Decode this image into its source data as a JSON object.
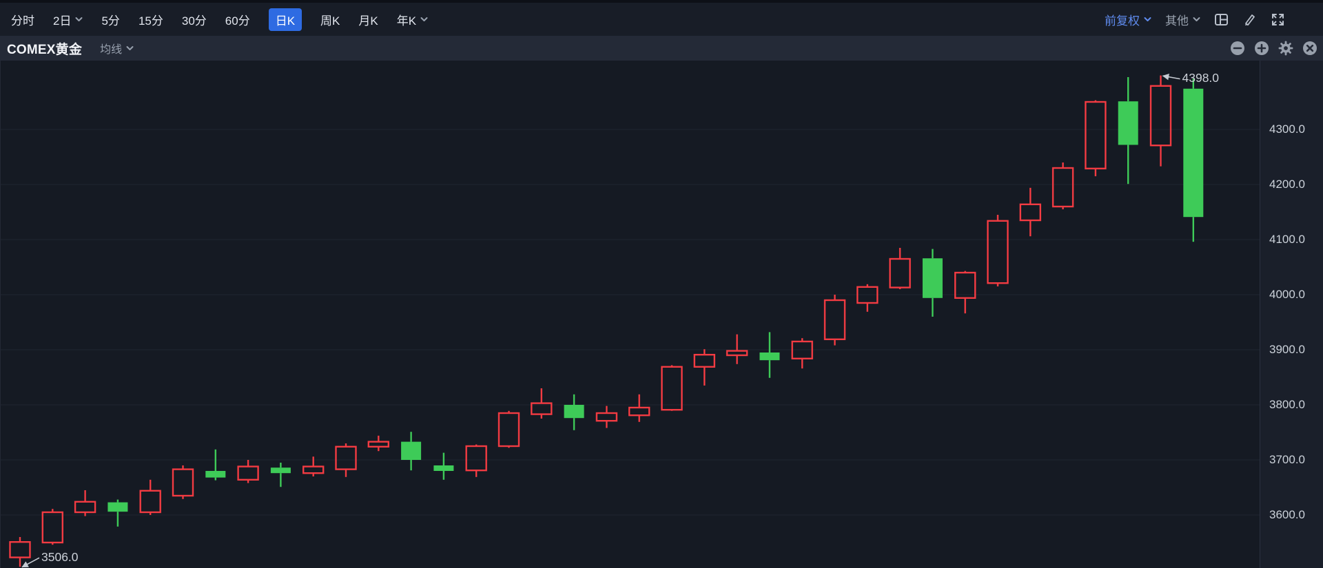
{
  "topbar": {
    "tabs": [
      {
        "label": "分时",
        "dropdown": false,
        "active": false
      },
      {
        "label": "2日",
        "dropdown": true,
        "active": false
      },
      {
        "label": "5分",
        "dropdown": false,
        "active": false
      },
      {
        "label": "15分",
        "dropdown": false,
        "active": false
      },
      {
        "label": "30分",
        "dropdown": false,
        "active": false
      },
      {
        "label": "60分",
        "dropdown": false,
        "active": false
      },
      {
        "label": "日K",
        "dropdown": false,
        "active": true
      },
      {
        "label": "周K",
        "dropdown": false,
        "active": false
      },
      {
        "label": "月K",
        "dropdown": false,
        "active": false
      },
      {
        "label": "年K",
        "dropdown": true,
        "active": false
      }
    ],
    "adjust_label": "前复权",
    "other_label": "其他",
    "icons": [
      "layout-grid-icon",
      "brush-icon",
      "expand-icon"
    ]
  },
  "subheader": {
    "title": "COMEX黄金",
    "ma_label": "均线",
    "icons": [
      "zoom-out-icon",
      "zoom-in-icon",
      "settings-gear-icon",
      "close-icon"
    ]
  },
  "chart_data": {
    "type": "candlestick",
    "title": "COMEX黄金 日K",
    "x_axis": {
      "labels_visible": false
    },
    "y_axis": {
      "side": "right",
      "values": [
        4300,
        4200,
        4100,
        4000,
        3900,
        3800,
        3700,
        3600
      ],
      "labels": [
        "4300.0",
        "4200.0",
        "4100.0",
        "4000.0",
        "3900.0",
        "3800.0",
        "3700.0",
        "3600.0"
      ]
    },
    "grid": "horizontal-only",
    "colors": {
      "up": "#f23b42",
      "down": "#3ecb58",
      "grid": "#1f2531",
      "axis_text": "#ccd2da",
      "annotation": "#ccd1d9",
      "active_tab": "#2e6be2"
    },
    "annotations": [
      {
        "label": "4398.0",
        "bar": 35,
        "anchor": "high"
      },
      {
        "label": "3506.0",
        "bar": 0,
        "anchor": "low"
      }
    ],
    "candle_key_order": [
      "open",
      "high",
      "low",
      "close"
    ],
    "candles": [
      [
        3523,
        3560,
        3506,
        3551
      ],
      [
        3550,
        3611,
        3546,
        3605
      ],
      [
        3605,
        3645,
        3598,
        3624
      ],
      [
        3623,
        3628,
        3579,
        3606
      ],
      [
        3605,
        3664,
        3600,
        3644
      ],
      [
        3635,
        3690,
        3629,
        3683
      ],
      [
        3680,
        3719,
        3663,
        3668
      ],
      [
        3664,
        3700,
        3658,
        3688
      ],
      [
        3686,
        3695,
        3651,
        3676
      ],
      [
        3676,
        3706,
        3670,
        3688
      ],
      [
        3683,
        3730,
        3669,
        3724
      ],
      [
        3724,
        3744,
        3716,
        3733
      ],
      [
        3733,
        3751,
        3681,
        3700
      ],
      [
        3690,
        3713,
        3664,
        3680
      ],
      [
        3681,
        3728,
        3669,
        3725
      ],
      [
        3725,
        3789,
        3722,
        3785
      ],
      [
        3783,
        3830,
        3775,
        3803
      ],
      [
        3800,
        3819,
        3754,
        3776
      ],
      [
        3771,
        3798,
        3758,
        3785
      ],
      [
        3781,
        3819,
        3769,
        3795
      ],
      [
        3791,
        3872,
        3789,
        3869
      ],
      [
        3869,
        3901,
        3835,
        3891
      ],
      [
        3890,
        3928,
        3874,
        3898
      ],
      [
        3895,
        3932,
        3849,
        3881
      ],
      [
        3884,
        3921,
        3866,
        3915
      ],
      [
        3919,
        4000,
        3908,
        3990
      ],
      [
        3985,
        4019,
        3969,
        4014
      ],
      [
        4013,
        4085,
        4010,
        4065
      ],
      [
        4066,
        4083,
        3960,
        3994
      ],
      [
        3994,
        4043,
        3966,
        4040
      ],
      [
        4021,
        4145,
        4015,
        4134
      ],
      [
        4135,
        4194,
        4106,
        4164
      ],
      [
        4160,
        4240,
        4155,
        4230
      ],
      [
        4229,
        4353,
        4215,
        4350
      ],
      [
        4351,
        4395,
        4201,
        4272
      ],
      [
        4271,
        4398,
        4233,
        4379
      ],
      [
        4374,
        4392,
        4096,
        4141
      ]
    ]
  }
}
